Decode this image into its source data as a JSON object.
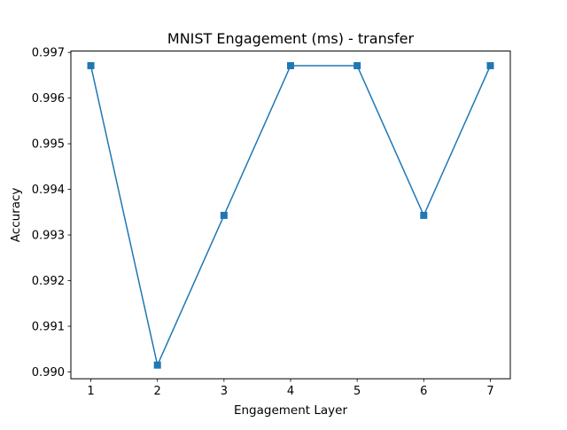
{
  "chart_data": {
    "type": "line",
    "title": "MNIST Engagement (ms) - transfer",
    "xlabel": "Engagement Layer",
    "ylabel": "Accuracy",
    "x": [
      1,
      2,
      3,
      4,
      5,
      6,
      7
    ],
    "xticks": [
      "1",
      "2",
      "3",
      "4",
      "5",
      "6",
      "7"
    ],
    "xlim": [
      0.7,
      7.3
    ],
    "yticks": [
      "0.990",
      "0.991",
      "0.992",
      "0.993",
      "0.994",
      "0.995",
      "0.996",
      "0.997"
    ],
    "ylim": [
      0.98985,
      0.99703
    ],
    "grid": false,
    "series": [
      {
        "values": [
          0.99671,
          0.99015,
          0.99343,
          0.99671,
          0.99671,
          0.99343,
          0.99671
        ],
        "color": "#1f77b4",
        "marker": "square"
      }
    ]
  }
}
